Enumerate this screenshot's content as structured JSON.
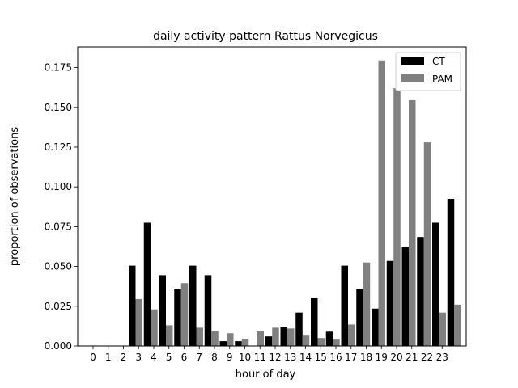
{
  "chart_data": {
    "type": "bar",
    "title": "daily activity pattern Rattus Norvegicus",
    "xlabel": "hour of day",
    "ylabel": "proportion of observations",
    "categories": [
      "0",
      "1",
      "2",
      "3",
      "4",
      "5",
      "6",
      "7",
      "8",
      "9",
      "10",
      "11",
      "12",
      "13",
      "14",
      "15",
      "16",
      "17",
      "18",
      "19",
      "20",
      "21",
      "22",
      "23"
    ],
    "ylim": [
      0,
      0.188
    ],
    "yticks": [
      "0.000",
      "0.025",
      "0.050",
      "0.075",
      "0.100",
      "0.125",
      "0.150",
      "0.175"
    ],
    "grid": false,
    "legend_position": "top-right",
    "series": [
      {
        "name": "CT",
        "color": "#000000",
        "values": [
          0,
          0,
          0.0505,
          0.0775,
          0.0445,
          0.036,
          0.0505,
          0.0445,
          0.003,
          0.003,
          0,
          0.006,
          0.012,
          0.021,
          0.03,
          0.009,
          0.0505,
          0.036,
          0.0235,
          0.0535,
          0.0625,
          0.0685,
          0.0775,
          0.0925
        ]
      },
      {
        "name": "PAM",
        "color": "#808080",
        "values": [
          0,
          0,
          0.0295,
          0.023,
          0.013,
          0.0395,
          0.0115,
          0.0095,
          0.008,
          0.0045,
          0.0095,
          0.0115,
          0.011,
          0.0065,
          0.005,
          0.004,
          0.0135,
          0.0525,
          0.1795,
          0.162,
          0.1545,
          0.128,
          0.021,
          0.026
        ]
      }
    ]
  }
}
